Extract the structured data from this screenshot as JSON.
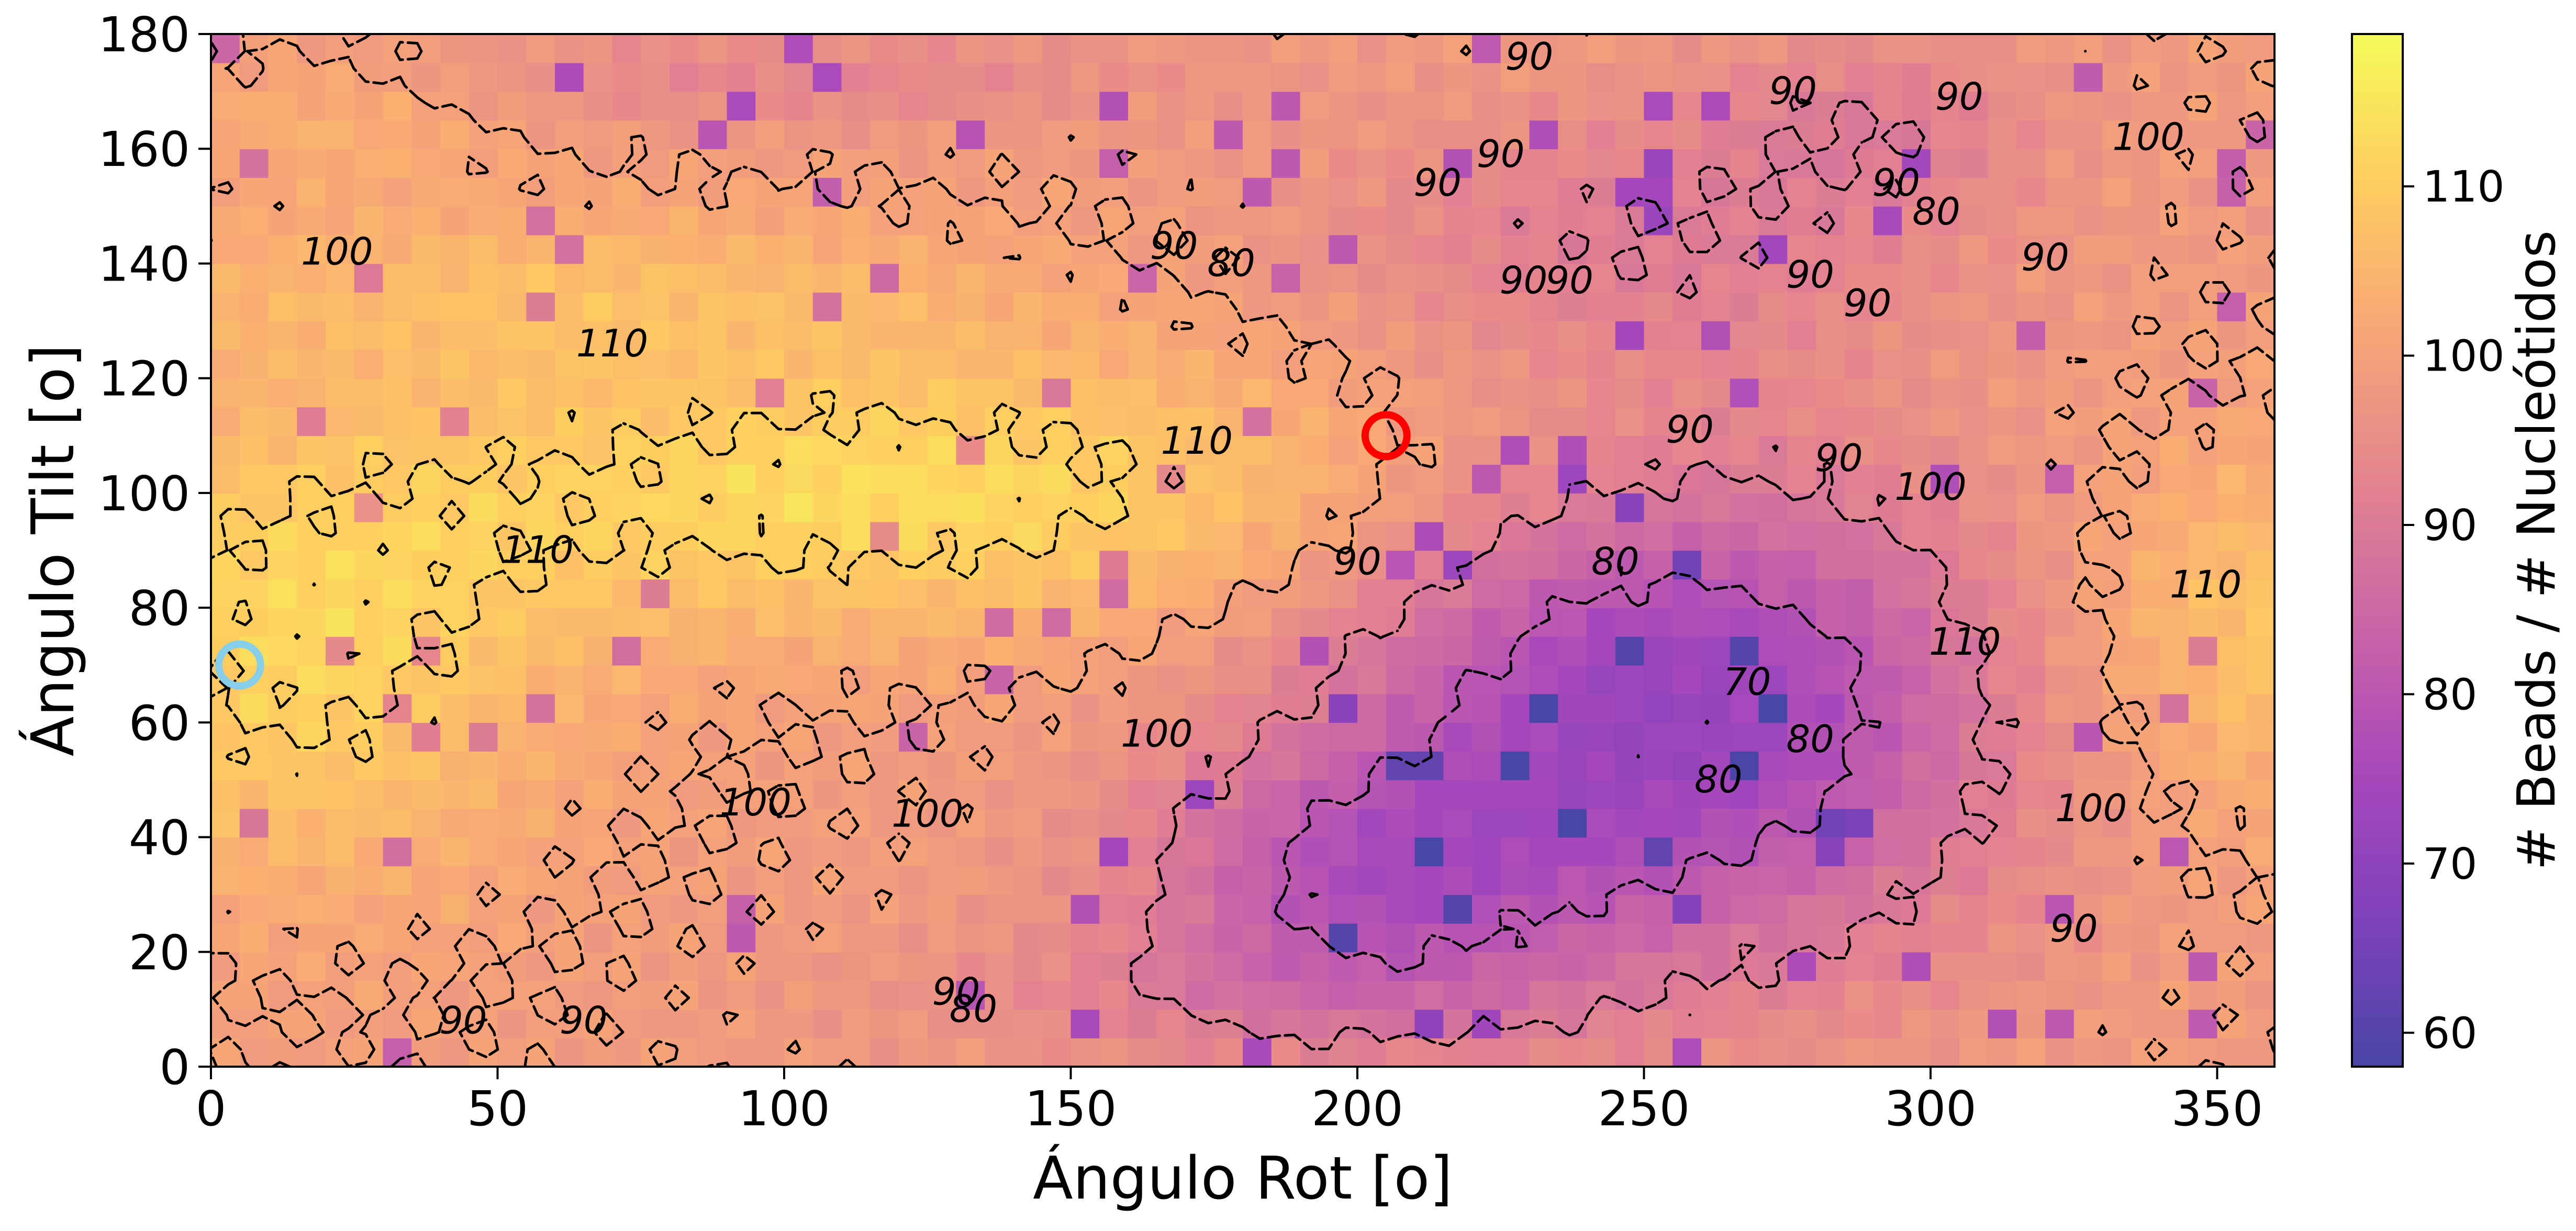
{
  "chart_data": {
    "type": "heatmap",
    "title": "",
    "xlabel": "Ángulo Rot [o]",
    "ylabel": "Ángulo Tilt [o]",
    "xlim": [
      0,
      360
    ],
    "ylim": [
      0,
      180
    ],
    "x_ticks": [
      0,
      50,
      100,
      150,
      200,
      250,
      300,
      350
    ],
    "y_ticks": [
      0,
      20,
      40,
      60,
      80,
      100,
      120,
      140,
      160,
      180
    ],
    "grid": false,
    "colormap": "plasma",
    "alpha": 0.75,
    "colorbar": {
      "label": "# Beads / # Nucleótidos",
      "range": [
        58,
        119
      ],
      "ticks": [
        60,
        70,
        80,
        90,
        100,
        110
      ]
    },
    "contour_levels": [
      70,
      80,
      90,
      100,
      110
    ],
    "contour_style": "dashed",
    "contour_color": "#000000",
    "contour_labels": [
      {
        "x": 22,
        "y": 142,
        "text": "100"
      },
      {
        "x": 70,
        "y": 126,
        "text": "110"
      },
      {
        "x": 57,
        "y": 90,
        "text": "110"
      },
      {
        "x": 95,
        "y": 46,
        "text": "100"
      },
      {
        "x": 125,
        "y": 44,
        "text": "100"
      },
      {
        "x": 44,
        "y": 8,
        "text": "90"
      },
      {
        "x": 65,
        "y": 8,
        "text": "90"
      },
      {
        "x": 130,
        "y": 13,
        "text": "90"
      },
      {
        "x": 133,
        "y": 10,
        "text": "80"
      },
      {
        "x": 172,
        "y": 109,
        "text": "110"
      },
      {
        "x": 168,
        "y": 143,
        "text": "90"
      },
      {
        "x": 178,
        "y": 140,
        "text": "80"
      },
      {
        "x": 165,
        "y": 58,
        "text": "100"
      },
      {
        "x": 200,
        "y": 88,
        "text": "90"
      },
      {
        "x": 225,
        "y": 159,
        "text": "90"
      },
      {
        "x": 214,
        "y": 154,
        "text": "90"
      },
      {
        "x": 229,
        "y": 137,
        "text": "90"
      },
      {
        "x": 237,
        "y": 137,
        "text": "90"
      },
      {
        "x": 230,
        "y": 176,
        "text": "90"
      },
      {
        "x": 245,
        "y": 88,
        "text": "80"
      },
      {
        "x": 258,
        "y": 111,
        "text": "90"
      },
      {
        "x": 268,
        "y": 67,
        "text": "70"
      },
      {
        "x": 263,
        "y": 50,
        "text": "80"
      },
      {
        "x": 279,
        "y": 57,
        "text": "80"
      },
      {
        "x": 276,
        "y": 170,
        "text": "90"
      },
      {
        "x": 305,
        "y": 169,
        "text": "90"
      },
      {
        "x": 294,
        "y": 154,
        "text": "90"
      },
      {
        "x": 301,
        "y": 149,
        "text": "80"
      },
      {
        "x": 279,
        "y": 138,
        "text": "90"
      },
      {
        "x": 289,
        "y": 133,
        "text": "90"
      },
      {
        "x": 284,
        "y": 106,
        "text": "90"
      },
      {
        "x": 300,
        "y": 101,
        "text": "100"
      },
      {
        "x": 320,
        "y": 141,
        "text": "90"
      },
      {
        "x": 338,
        "y": 162,
        "text": "100"
      },
      {
        "x": 348,
        "y": 84,
        "text": "110"
      },
      {
        "x": 306,
        "y": 74,
        "text": "110"
      },
      {
        "x": 328,
        "y": 45,
        "text": "100"
      },
      {
        "x": 325,
        "y": 24,
        "text": "90"
      }
    ],
    "highlight_markers": [
      {
        "x": 5,
        "y": 70,
        "color": "#87ceeb"
      },
      {
        "x": 205,
        "y": 110,
        "color": "#ff0000"
      }
    ]
  }
}
